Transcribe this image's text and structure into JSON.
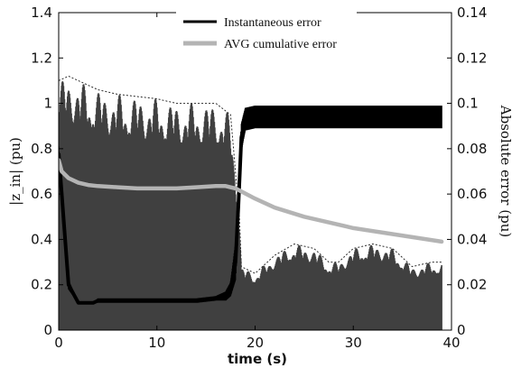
{
  "chart_data": {
    "type": "line",
    "title": "",
    "xlabel": "time (s)",
    "ylabel_left": "|z_in| (pu)",
    "ylabel_right": "Absolute error (pu)",
    "xlim": [
      0,
      40
    ],
    "ylim_left": [
      0,
      1.4
    ],
    "ylim_right": [
      0,
      0.14
    ],
    "x_ticks": [
      "0",
      "10",
      "20",
      "30",
      "40"
    ],
    "y_ticks_left": [
      "0",
      "0.2",
      "0.4",
      "0.6",
      "0.8",
      "1",
      "1.2",
      "1.4"
    ],
    "y_ticks_right": [
      "0",
      "0.02",
      "0.04",
      "0.06",
      "0.08",
      "0.1",
      "0.12",
      "0.14"
    ],
    "grid": false,
    "legend_position": "top-center",
    "series": [
      {
        "name": "Instantaneous error",
        "axis": "left",
        "color": "#000000",
        "x": [
          0,
          1,
          2,
          3,
          3.5,
          4,
          6,
          8,
          10,
          12,
          14,
          16,
          17,
          17.5,
          18,
          18.3,
          18.6,
          19,
          20,
          25,
          30,
          35,
          39
        ],
        "y": [
          0.78,
          0.2,
          0.12,
          0.12,
          0.12,
          0.13,
          0.13,
          0.13,
          0.13,
          0.13,
          0.13,
          0.14,
          0.15,
          0.18,
          0.3,
          0.55,
          0.85,
          0.93,
          0.94,
          0.94,
          0.94,
          0.94,
          0.94
        ],
        "band": [
          0.03,
          0.02,
          0.0,
          0.0,
          0.0,
          0.01,
          0.01,
          0.01,
          0.01,
          0.01,
          0.01,
          0.01,
          0.02,
          0.03,
          0.08,
          0.1,
          0.06,
          0.05,
          0.05,
          0.05,
          0.05,
          0.05,
          0.05
        ]
      },
      {
        "name": "AVG cumulative error",
        "axis": "right",
        "color": "#b4b4b4",
        "x": [
          0,
          0.3,
          1,
          2,
          3,
          4,
          6,
          8,
          10,
          12,
          14,
          16,
          17,
          18,
          20,
          22,
          25,
          28,
          30,
          33,
          36,
          39
        ],
        "y": [
          0.075,
          0.07,
          0.067,
          0.065,
          0.064,
          0.0635,
          0.063,
          0.0625,
          0.0625,
          0.0625,
          0.063,
          0.0635,
          0.0635,
          0.0625,
          0.058,
          0.054,
          0.05,
          0.047,
          0.045,
          0.043,
          0.041,
          0.039
        ]
      },
      {
        "name": "",
        "axis": "left",
        "color": "#404040",
        "x": [
          0,
          1,
          2,
          4,
          6,
          8,
          10,
          12,
          14,
          16,
          17.5,
          18.4,
          18.6,
          20,
          22,
          24,
          26,
          27.5,
          28.5,
          30,
          32,
          34,
          36,
          38,
          39
        ],
        "lower": [
          0,
          0,
          0,
          0,
          0,
          0,
          0,
          0,
          0,
          0,
          0,
          0,
          0,
          0,
          0,
          0,
          0,
          0,
          0,
          0,
          0,
          0,
          0,
          0,
          0
        ],
        "upper": [
          1.1,
          1.12,
          1.1,
          1.06,
          1.04,
          1.03,
          1.02,
          1.0,
          1.0,
          1.0,
          0.95,
          0.5,
          0.28,
          0.25,
          0.33,
          0.38,
          0.36,
          0.3,
          0.3,
          0.36,
          0.38,
          0.36,
          0.28,
          0.3,
          0.3
        ]
      }
    ]
  }
}
